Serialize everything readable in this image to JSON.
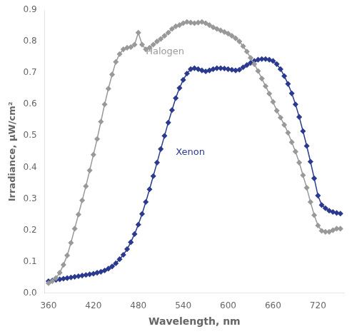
{
  "chart_data": {
    "type": "line",
    "title": "",
    "xlabel": "Wavelength, nm",
    "ylabel": "Irradiance, μW/cm²",
    "xlim": [
      355,
      755
    ],
    "ylim": [
      0,
      0.9
    ],
    "xticks": [
      360,
      420,
      480,
      540,
      600,
      660,
      720
    ],
    "yticks": [
      {
        "value": 0,
        "label": "0.0"
      },
      0.1,
      0.2,
      0.3,
      0.4,
      0.5,
      0.6,
      0.7,
      0.8,
      0.9
    ],
    "grid": false,
    "marker": "diamond",
    "x": [
      360,
      365,
      370,
      375,
      380,
      385,
      390,
      395,
      400,
      405,
      410,
      415,
      420,
      425,
      430,
      435,
      440,
      445,
      450,
      455,
      460,
      465,
      470,
      475,
      480,
      485,
      490,
      495,
      500,
      505,
      510,
      515,
      520,
      525,
      530,
      535,
      540,
      545,
      550,
      555,
      560,
      565,
      570,
      575,
      580,
      585,
      590,
      595,
      600,
      605,
      610,
      615,
      620,
      625,
      630,
      635,
      640,
      645,
      650,
      655,
      660,
      665,
      670,
      675,
      680,
      685,
      690,
      695,
      700,
      705,
      710,
      715,
      720,
      725,
      730,
      735,
      740,
      745,
      750
    ],
    "series": [
      {
        "name": "Halogen",
        "color": "#999999",
        "values": [
          0.032,
          0.038,
          0.048,
          0.065,
          0.09,
          0.12,
          0.16,
          0.205,
          0.25,
          0.295,
          0.34,
          0.39,
          0.44,
          0.49,
          0.545,
          0.6,
          0.65,
          0.695,
          0.735,
          0.76,
          0.775,
          0.78,
          0.782,
          0.79,
          0.828,
          0.79,
          0.775,
          0.78,
          0.79,
          0.8,
          0.808,
          0.818,
          0.828,
          0.84,
          0.848,
          0.852,
          0.858,
          0.862,
          0.86,
          0.858,
          0.86,
          0.862,
          0.858,
          0.852,
          0.845,
          0.84,
          0.835,
          0.83,
          0.825,
          0.818,
          0.81,
          0.8,
          0.785,
          0.768,
          0.748,
          0.728,
          0.706,
          0.682,
          0.658,
          0.634,
          0.608,
          0.58,
          0.558,
          0.535,
          0.51,
          0.48,
          0.45,
          0.415,
          0.375,
          0.335,
          0.29,
          0.248,
          0.215,
          0.198,
          0.195,
          0.195,
          0.2,
          0.205,
          0.205
        ]
      },
      {
        "name": "Xenon",
        "color": "#2b3a8f",
        "values": [
          0.038,
          0.04,
          0.042,
          0.044,
          0.046,
          0.048,
          0.05,
          0.052,
          0.054,
          0.056,
          0.058,
          0.06,
          0.062,
          0.065,
          0.068,
          0.072,
          0.078,
          0.085,
          0.095,
          0.108,
          0.122,
          0.14,
          0.162,
          0.188,
          0.218,
          0.252,
          0.29,
          0.33,
          0.372,
          0.415,
          0.458,
          0.5,
          0.542,
          0.582,
          0.62,
          0.652,
          0.678,
          0.698,
          0.712,
          0.715,
          0.712,
          0.708,
          0.705,
          0.708,
          0.712,
          0.715,
          0.715,
          0.714,
          0.712,
          0.71,
          0.708,
          0.71,
          0.718,
          0.725,
          0.732,
          0.738,
          0.742,
          0.744,
          0.744,
          0.742,
          0.738,
          0.728,
          0.712,
          0.69,
          0.665,
          0.635,
          0.6,
          0.56,
          0.515,
          0.468,
          0.418,
          0.365,
          0.31,
          0.28,
          0.27,
          0.262,
          0.258,
          0.255,
          0.253
        ]
      }
    ],
    "annotations": [
      {
        "text": "Halogen",
        "x": 490,
        "y": 0.76,
        "color": "#999999"
      },
      {
        "text": "Xenon",
        "x": 530,
        "y": 0.44,
        "color": "#2b3a8f"
      }
    ]
  }
}
